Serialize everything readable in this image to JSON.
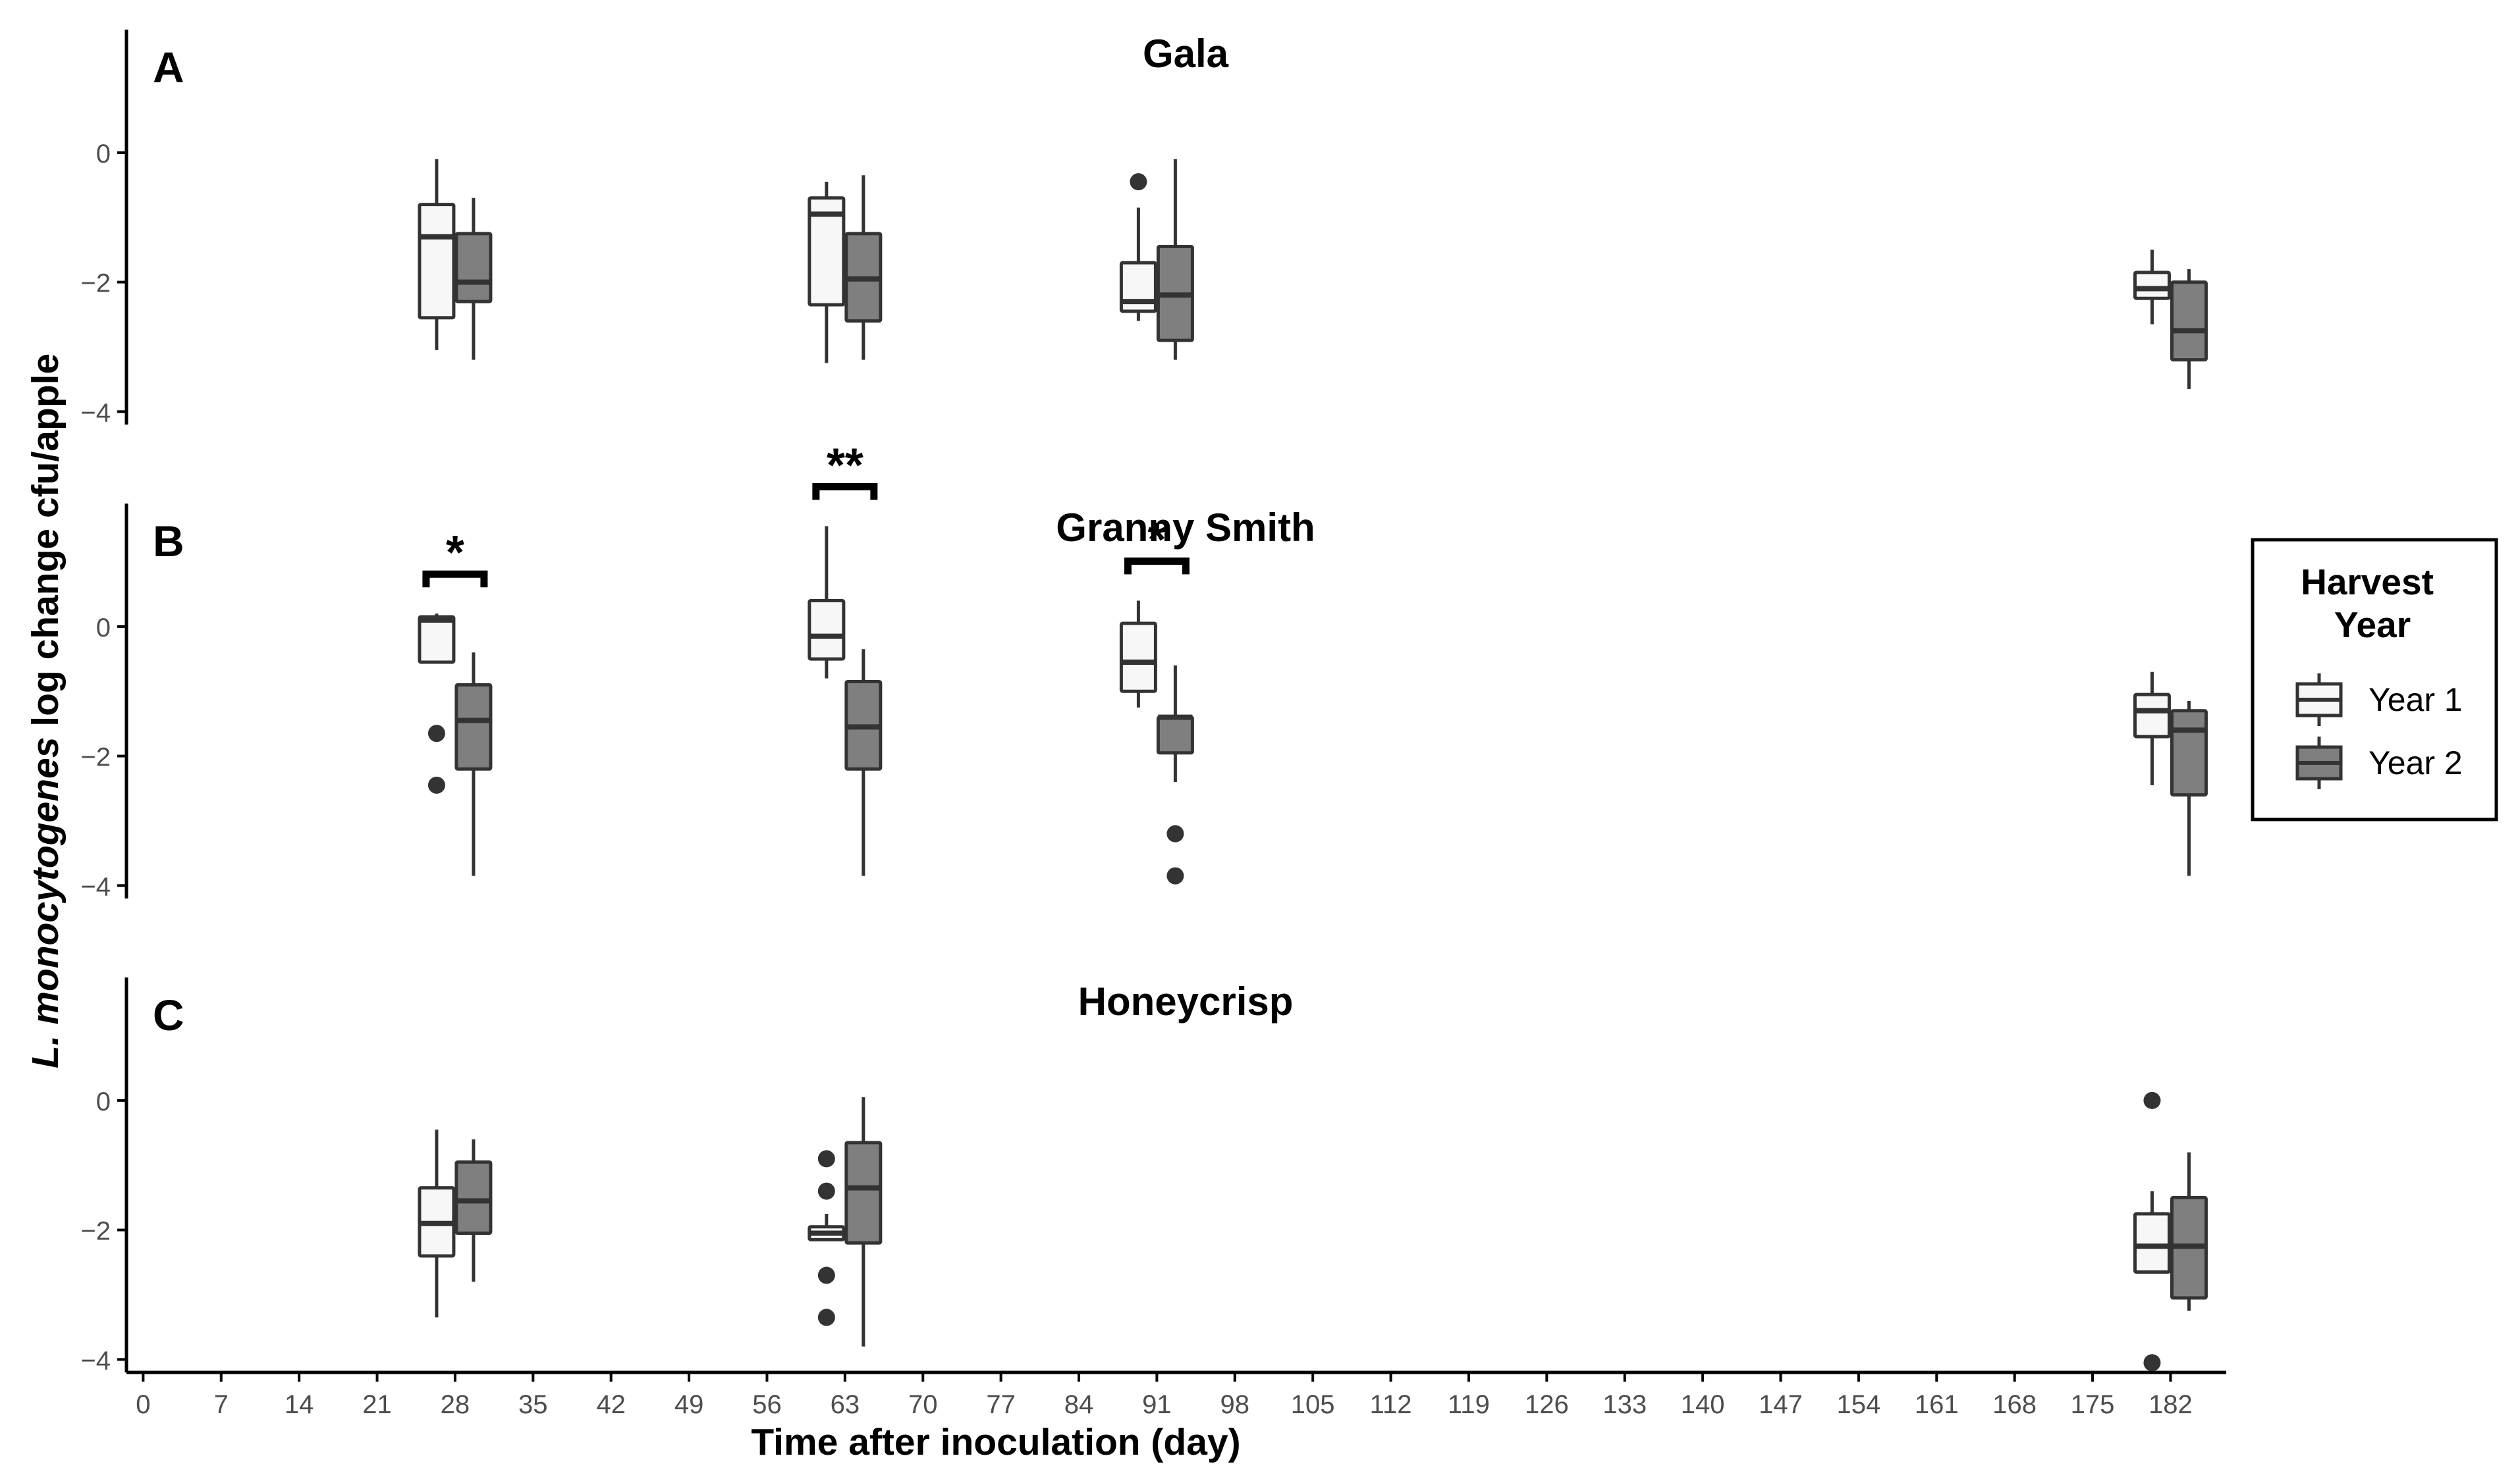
{
  "figure": {
    "ylabel_italic": "L. monocytogenes",
    "ylabel_rest": " log change cfu/apple",
    "xlabel": "Time after inoculation (day)"
  },
  "colors": {
    "year1_fill": "#f7f7f7",
    "year2_fill": "#7f7f7f",
    "stroke": "#333333",
    "axis": "#000000"
  },
  "legend": {
    "title_line1": "Harvest",
    "title_line2": "Year",
    "placement": "right",
    "entries": [
      {
        "label": "Year 1",
        "fill": "#f7f7f7"
      },
      {
        "label": "Year 2",
        "fill": "#7f7f7f"
      }
    ]
  },
  "chart_data": [
    {
      "type": "boxplot",
      "panel": "A",
      "title": "Gala",
      "ylim": [
        -4.2,
        1.9
      ],
      "yticks": [
        0,
        -2,
        -4
      ],
      "xticks": [
        0,
        7,
        14,
        21,
        28,
        35,
        42,
        49,
        56,
        63,
        70,
        77,
        84,
        91,
        98,
        105,
        112,
        119,
        126,
        133,
        140,
        147,
        154,
        161,
        168,
        175,
        182
      ],
      "xlim": [
        -1.5,
        187
      ],
      "boxes": [
        {
          "series": "Year 1",
          "day": 28,
          "min": -3.05,
          "q1": -2.55,
          "median": -1.3,
          "q3": -0.8,
          "max": -0.1,
          "outliers": []
        },
        {
          "series": "Year 2",
          "day": 28,
          "min": -3.2,
          "q1": -2.3,
          "median": -2.0,
          "q3": -1.25,
          "max": -0.7,
          "outliers": []
        },
        {
          "series": "Year 1",
          "day": 63,
          "min": -3.25,
          "q1": -2.35,
          "median": -0.95,
          "q3": -0.7,
          "max": -0.45,
          "outliers": []
        },
        {
          "series": "Year 2",
          "day": 63,
          "min": -3.2,
          "q1": -2.6,
          "median": -1.95,
          "q3": -1.25,
          "max": -0.35,
          "outliers": []
        },
        {
          "series": "Year 1",
          "day": 91,
          "min": -2.6,
          "q1": -2.45,
          "median": -2.3,
          "q3": -1.7,
          "max": -0.85,
          "outliers": [
            -0.45
          ]
        },
        {
          "series": "Year 2",
          "day": 91,
          "min": -3.2,
          "q1": -2.9,
          "median": -2.2,
          "q3": -1.45,
          "max": -0.1,
          "outliers": []
        },
        {
          "series": "Year 1",
          "day": 182,
          "min": -2.65,
          "q1": -2.25,
          "median": -2.1,
          "q3": -1.85,
          "max": -1.5,
          "outliers": []
        },
        {
          "series": "Year 2",
          "day": 182,
          "min": -3.65,
          "q1": -3.2,
          "median": -2.75,
          "q3": -2.0,
          "max": -1.8,
          "outliers": []
        }
      ],
      "significance": []
    },
    {
      "type": "boxplot",
      "panel": "B",
      "title": "Granny Smith",
      "ylim": [
        -4.2,
        1.9
      ],
      "yticks": [
        0,
        -2,
        -4
      ],
      "xticks": [
        0,
        7,
        14,
        21,
        28,
        35,
        42,
        49,
        56,
        63,
        70,
        77,
        84,
        91,
        98,
        105,
        112,
        119,
        126,
        133,
        140,
        147,
        154,
        161,
        168,
        175,
        182
      ],
      "xlim": [
        -1.5,
        187
      ],
      "boxes": [
        {
          "series": "Year 1",
          "day": 28,
          "min": -0.55,
          "q1": -0.55,
          "median": 0.1,
          "q3": 0.15,
          "max": 0.2,
          "outliers": [
            -1.65,
            -2.45
          ]
        },
        {
          "series": "Year 2",
          "day": 28,
          "min": -3.85,
          "q1": -2.2,
          "median": -1.45,
          "q3": -0.9,
          "max": -0.4,
          "outliers": []
        },
        {
          "series": "Year 1",
          "day": 63,
          "min": -0.8,
          "q1": -0.5,
          "median": -0.15,
          "q3": 0.4,
          "max": 1.55,
          "outliers": []
        },
        {
          "series": "Year 2",
          "day": 63,
          "min": -3.85,
          "q1": -2.2,
          "median": -1.55,
          "q3": -0.85,
          "max": -0.35,
          "outliers": []
        },
        {
          "series": "Year 1",
          "day": 91,
          "min": -1.25,
          "q1": -1.0,
          "median": -0.55,
          "q3": 0.05,
          "max": 0.4,
          "outliers": []
        },
        {
          "series": "Year 2",
          "day": 91,
          "min": -2.4,
          "q1": -1.95,
          "median": -1.4,
          "q3": -1.4,
          "max": -0.6,
          "outliers": [
            -3.2,
            -3.85
          ]
        },
        {
          "series": "Year 1",
          "day": 182,
          "min": -2.45,
          "q1": -1.7,
          "median": -1.3,
          "q3": -1.05,
          "max": -0.7,
          "outliers": []
        },
        {
          "series": "Year 2",
          "day": 182,
          "min": -3.85,
          "q1": -2.6,
          "median": -1.6,
          "q3": -1.3,
          "max": -1.15,
          "outliers": []
        }
      ],
      "significance": [
        {
          "day": 28,
          "label": "*"
        },
        {
          "day": 63,
          "label": "**"
        },
        {
          "day": 91,
          "label": "*"
        }
      ]
    },
    {
      "type": "boxplot",
      "panel": "C",
      "title": "Honeycrisp",
      "ylim": [
        -4.2,
        1.9
      ],
      "yticks": [
        0,
        -2,
        -4
      ],
      "xticks": [
        0,
        7,
        14,
        21,
        28,
        35,
        42,
        49,
        56,
        63,
        70,
        77,
        84,
        91,
        98,
        105,
        112,
        119,
        126,
        133,
        140,
        147,
        154,
        161,
        168,
        175,
        182
      ],
      "xlim": [
        -1.5,
        187
      ],
      "boxes": [
        {
          "series": "Year 1",
          "day": 28,
          "min": -3.35,
          "q1": -2.4,
          "median": -1.9,
          "q3": -1.35,
          "max": -0.45,
          "outliers": []
        },
        {
          "series": "Year 2",
          "day": 28,
          "min": -2.8,
          "q1": -2.05,
          "median": -1.55,
          "q3": -0.95,
          "max": -0.6,
          "outliers": []
        },
        {
          "series": "Year 1",
          "day": 63,
          "min": -2.15,
          "q1": -2.15,
          "median": -2.05,
          "q3": -1.95,
          "max": -1.75,
          "outliers": [
            -0.9,
            -1.4,
            -2.7,
            -3.35
          ]
        },
        {
          "series": "Year 2",
          "day": 63,
          "min": -3.8,
          "q1": -2.2,
          "median": -1.35,
          "q3": -0.65,
          "max": 0.05,
          "outliers": []
        },
        {
          "series": "Year 1",
          "day": 182,
          "min": -2.65,
          "q1": -2.65,
          "median": -2.25,
          "q3": -1.75,
          "max": -1.4,
          "outliers": [
            0.0,
            -4.05
          ]
        },
        {
          "series": "Year 2",
          "day": 182,
          "min": -3.25,
          "q1": -3.05,
          "median": -2.25,
          "q3": -1.5,
          "max": -0.8,
          "outliers": []
        }
      ],
      "significance": []
    }
  ]
}
